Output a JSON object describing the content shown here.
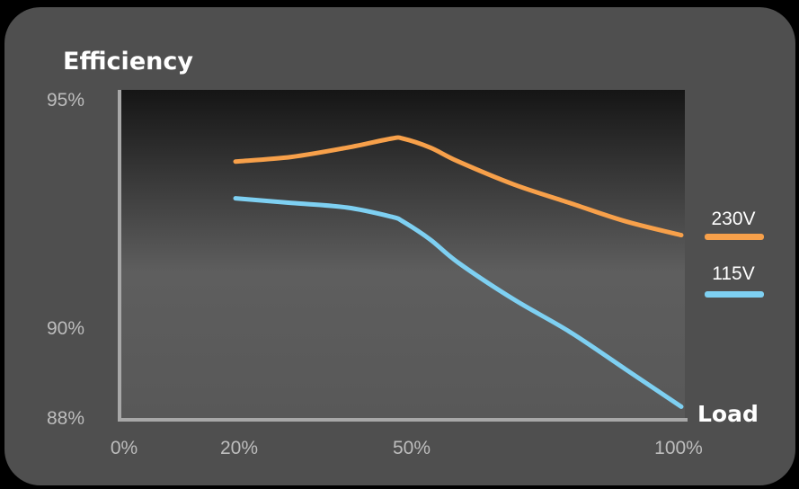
{
  "chart_data": {
    "type": "line",
    "ylabel": "Efficiency",
    "xlabel": "Load",
    "x_ticks": [
      "0%",
      "20%",
      "50%",
      "100%"
    ],
    "y_ticks": [
      "95%",
      "90%",
      "88%"
    ],
    "xlim": [
      0,
      100
    ],
    "ylim": [
      88,
      95
    ],
    "y_scale": "piecewise",
    "grid": false,
    "legend_position": "right",
    "series": [
      {
        "name": "230V",
        "color": "#f7a04a",
        "x": [
          20,
          30,
          40,
          48,
          50,
          55,
          60,
          70,
          80,
          90,
          100
        ],
        "y": [
          93.6,
          93.7,
          93.9,
          94.1,
          94.1,
          93.9,
          93.6,
          93.1,
          92.7,
          92.3,
          92.0
        ]
      },
      {
        "name": "115V",
        "color": "#7ed0f2",
        "x": [
          20,
          30,
          40,
          48,
          50,
          55,
          60,
          70,
          80,
          90,
          100
        ],
        "y": [
          92.8,
          92.7,
          92.6,
          92.4,
          92.3,
          91.9,
          91.4,
          90.6,
          89.9,
          89.1,
          88.3
        ]
      }
    ]
  }
}
